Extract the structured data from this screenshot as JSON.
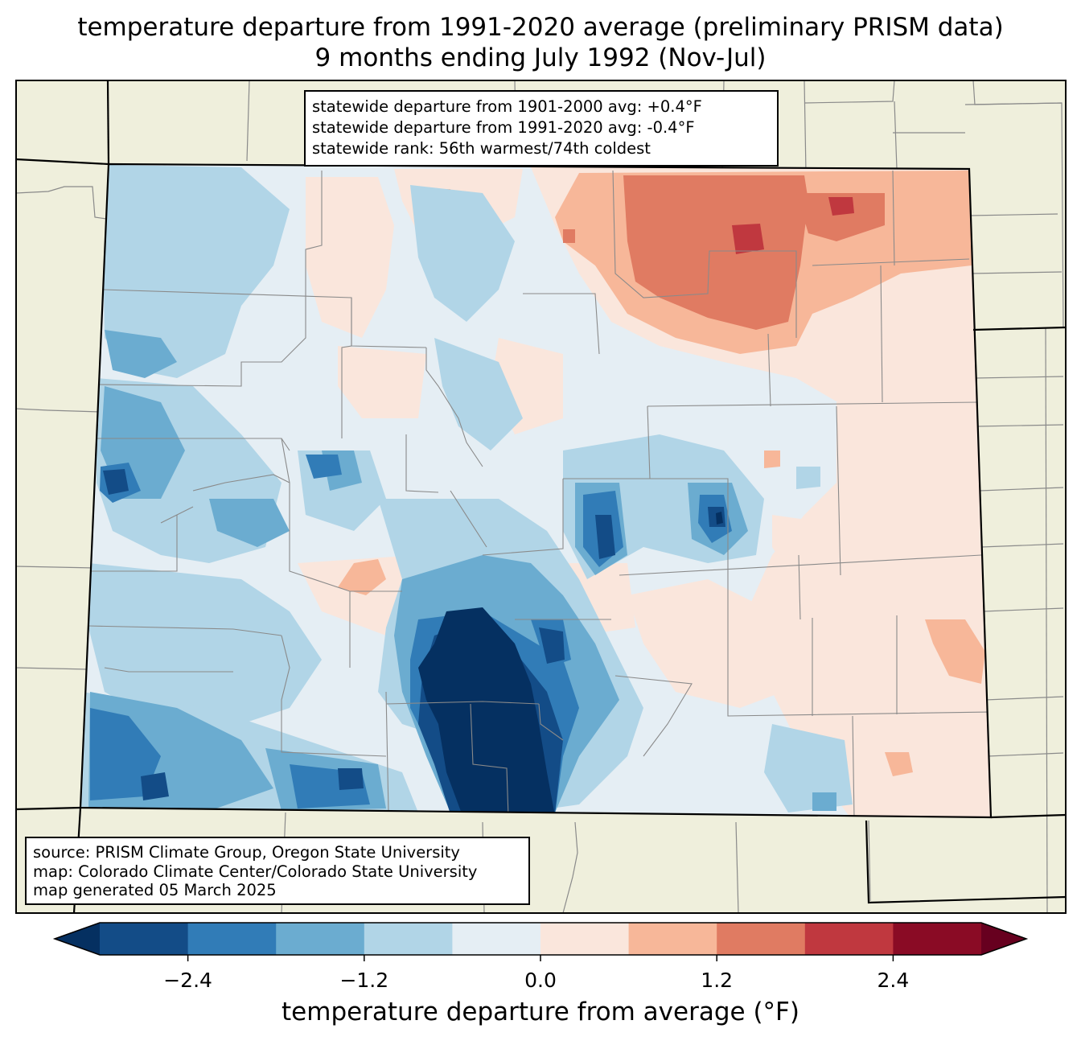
{
  "title": {
    "line1": "temperature departure from 1991-2020 average (preliminary PRISM data)",
    "line2": "9 months ending July 1992 (Nov-Jul)"
  },
  "stats": {
    "line1": "statewide departure from 1901-2000 avg: +0.4°F",
    "line2": "statewide departure from 1991-2020 avg: -0.4°F",
    "line3": "statewide rank: 56th warmest/74th coldest"
  },
  "source": {
    "line1": "source: PRISM Climate Group, Oregon State University",
    "line2": "map: Colorado Climate Center/Colorado State University",
    "line3": "map generated 05 March 2025"
  },
  "colorbar": {
    "label": "temperature departure from average (°F)",
    "ticks": [
      "−2.4",
      "−1.2",
      "0.0",
      "1.2",
      "2.4"
    ],
    "tick_values": [
      -2.4,
      -1.2,
      0.0,
      1.2,
      2.4
    ],
    "range": [
      -3.0,
      3.0
    ],
    "under_color": "#053061",
    "over_color": "#67001f",
    "bins": [
      {
        "from": -3.0,
        "to": -2.4,
        "color": "#134c87"
      },
      {
        "from": -2.4,
        "to": -1.8,
        "color": "#317cb7"
      },
      {
        "from": -1.8,
        "to": -1.2,
        "color": "#6bacd0"
      },
      {
        "from": -1.2,
        "to": -0.6,
        "color": "#b1d5e7"
      },
      {
        "from": -0.6,
        "to": 0.0,
        "color": "#e5eef4"
      },
      {
        "from": 0.0,
        "to": 0.6,
        "color": "#fae6dc"
      },
      {
        "from": 0.6,
        "to": 1.2,
        "color": "#f7b799"
      },
      {
        "from": 1.2,
        "to": 1.8,
        "color": "#e07b62"
      },
      {
        "from": 1.8,
        "to": 2.4,
        "color": "#c0383f"
      },
      {
        "from": 2.4,
        "to": 3.0,
        "color": "#8a0b25"
      }
    ]
  },
  "colors": {
    "land": "#efefdc",
    "county_line": "#8a8a8a",
    "state_line": "#000000"
  }
}
